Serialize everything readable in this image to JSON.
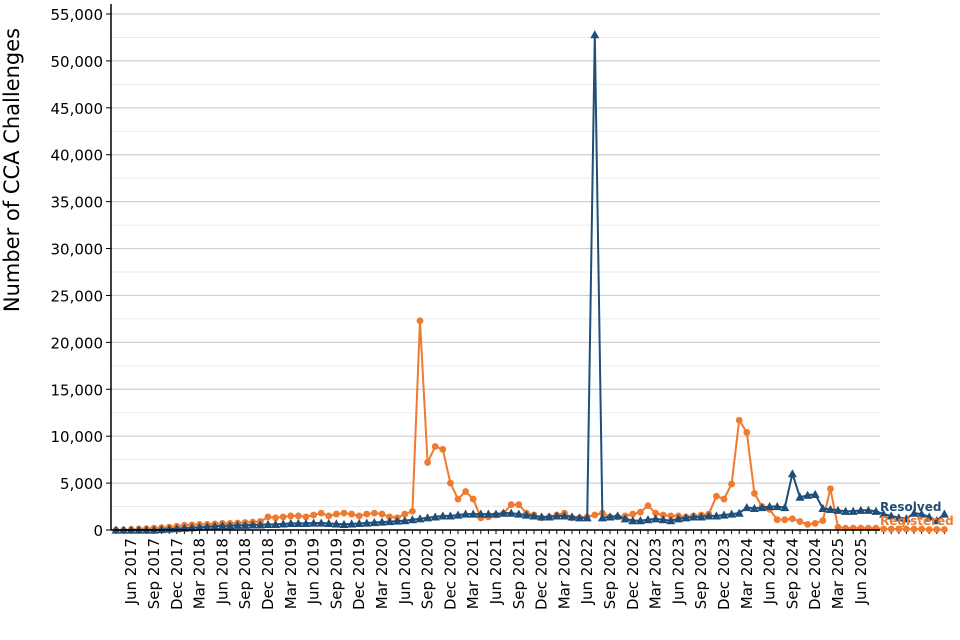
{
  "chart_data": {
    "type": "line",
    "title": "",
    "xlabel": "",
    "ylabel": "Number of CCA Challenges",
    "ylim": [
      0,
      55000
    ],
    "y_ticks": [
      "0",
      "5,000",
      "10,000",
      "15,000",
      "20,000",
      "25,000",
      "30,000",
      "35,000",
      "40,000",
      "45,000",
      "50,000",
      "55,000"
    ],
    "x_tick_labels": [
      "Jun 2017",
      "Sep 2017",
      "Dec 2017",
      "Mar 2018",
      "Jun 2018",
      "Sep 2018",
      "Dec 2018",
      "Mar 2019",
      "Jun 2019",
      "Sep 2019",
      "Dec 2019",
      "Mar 2020",
      "Jun 2020",
      "Sep 2020",
      "Dec 2020",
      "Mar 2021",
      "Jun 2021",
      "Sep 2021",
      "Dec 2021",
      "Mar 2022",
      "Jun 2022",
      "Sep 2022",
      "Dec 2022",
      "Mar 2023",
      "Jun 2023",
      "Sep 2023",
      "Dec 2023",
      "Mar 2024",
      "Jun 2024",
      "Sep 2024",
      "Dec 2024",
      "Mar 2025",
      "Jun 2025"
    ],
    "x_start": "Apr 2017",
    "x_end": "Jun 2025",
    "grid": true,
    "legend": "right end of lines",
    "series": [
      {
        "name": "Resolved",
        "color": "#1f4e79",
        "marker": "triangle",
        "values": [
          0,
          0,
          0,
          0,
          0,
          0,
          50,
          100,
          150,
          200,
          250,
          300,
          350,
          400,
          450,
          450,
          500,
          500,
          550,
          550,
          600,
          600,
          650,
          700,
          700,
          700,
          750,
          750,
          700,
          650,
          600,
          650,
          700,
          750,
          800,
          850,
          900,
          950,
          1000,
          1100,
          1200,
          1300,
          1400,
          1500,
          1500,
          1600,
          1700,
          1700,
          1700,
          1700,
          1700,
          1800,
          1800,
          1700,
          1600,
          1500,
          1400,
          1400,
          1500,
          1500,
          1400,
          1300,
          1300,
          52800,
          1300,
          1400,
          1500,
          1200,
          1000,
          1000,
          1100,
          1200,
          1100,
          1000,
          1200,
          1300,
          1400,
          1400,
          1500,
          1500,
          1600,
          1700,
          1800,
          2400,
          2300,
          2400,
          2500,
          2500,
          2400,
          6000,
          3500,
          3700,
          3800,
          2300,
          2200,
          2100,
          2000,
          2000,
          2100,
          2100,
          2000,
          1700,
          1500,
          1300,
          1200,
          1800,
          1700,
          1400,
          1000,
          1700
        ]
      },
      {
        "name": "Registered",
        "color": "#f07a2e",
        "marker": "circle",
        "values": [
          0,
          0,
          50,
          100,
          150,
          200,
          250,
          300,
          400,
          500,
          550,
          600,
          600,
          650,
          700,
          700,
          750,
          800,
          850,
          900,
          1400,
          1300,
          1400,
          1500,
          1500,
          1400,
          1600,
          1800,
          1500,
          1700,
          1800,
          1700,
          1500,
          1700,
          1800,
          1700,
          1400,
          1300,
          1700,
          2000,
          22300,
          7200,
          8900,
          8600,
          5000,
          3300,
          4100,
          3300,
          1300,
          1400,
          1600,
          1800,
          2700,
          2700,
          1800,
          1600,
          1300,
          1400,
          1600,
          1800,
          1300,
          1300,
          1400,
          1600,
          1800,
          1400,
          1400,
          1500,
          1700,
          1900,
          2600,
          1800,
          1600,
          1500,
          1500,
          1400,
          1500,
          1600,
          1700,
          3600,
          3300,
          4900,
          11700,
          10400,
          3900,
          2500,
          2200,
          1100,
          1100,
          1200,
          900,
          600,
          700,
          1000,
          4400,
          300,
          200,
          200,
          200,
          200,
          200,
          100,
          100,
          100,
          100,
          100,
          100,
          50,
          50,
          50
        ]
      }
    ]
  }
}
